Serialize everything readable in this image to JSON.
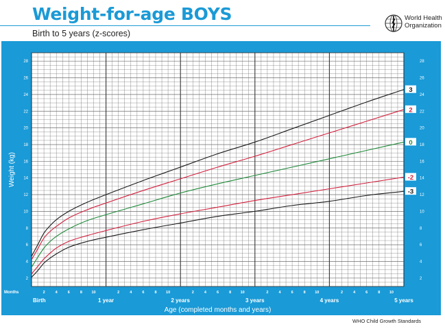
{
  "header": {
    "title": "Weight-for-age BOYS",
    "subtitle": "Birth to 5 years (z-scores)"
  },
  "logo": {
    "text": "World Health\nOrganization",
    "icon": "who-emblem-icon"
  },
  "footer": {
    "text": "WHO Child Growth Standards"
  },
  "colors": {
    "frame": "#1a9ad7",
    "grid": "#6e6e6e",
    "line_3": "#1a1a1a",
    "line_2": "#d21f3c",
    "line_0": "#1f8a3a",
    "line_m2": "#d21f3c",
    "line_m3": "#1a1a1a"
  },
  "chart_data": {
    "type": "line",
    "title": "Weight-for-age BOYS",
    "subtitle": "Birth to 5 years (z-scores)",
    "xlabel": "Age (completed months and years)",
    "ylabel": "Weight (kg)",
    "x_units": "months",
    "xlim": [
      0,
      60
    ],
    "ylim": [
      1,
      29
    ],
    "y_ticks": [
      2,
      4,
      6,
      8,
      10,
      12,
      14,
      16,
      18,
      20,
      22,
      24,
      26,
      28
    ],
    "x_months_label": "Months",
    "x_month_ticks": [
      {
        "x": 2,
        "label": "2"
      },
      {
        "x": 4,
        "label": "4"
      },
      {
        "x": 6,
        "label": "6"
      },
      {
        "x": 8,
        "label": "8"
      },
      {
        "x": 10,
        "label": "10"
      },
      {
        "x": 14,
        "label": "2"
      },
      {
        "x": 16,
        "label": "4"
      },
      {
        "x": 18,
        "label": "6"
      },
      {
        "x": 20,
        "label": "8"
      },
      {
        "x": 22,
        "label": "10"
      },
      {
        "x": 26,
        "label": "2"
      },
      {
        "x": 28,
        "label": "4"
      },
      {
        "x": 30,
        "label": "6"
      },
      {
        "x": 32,
        "label": "8"
      },
      {
        "x": 34,
        "label": "10"
      },
      {
        "x": 38,
        "label": "2"
      },
      {
        "x": 40,
        "label": "4"
      },
      {
        "x": 42,
        "label": "6"
      },
      {
        "x": 44,
        "label": "8"
      },
      {
        "x": 46,
        "label": "10"
      },
      {
        "x": 50,
        "label": "2"
      },
      {
        "x": 52,
        "label": "4"
      },
      {
        "x": 54,
        "label": "6"
      },
      {
        "x": 56,
        "label": "8"
      },
      {
        "x": 58,
        "label": "10"
      }
    ],
    "x_year_ticks": [
      {
        "x": 0,
        "label": "Birth"
      },
      {
        "x": 12,
        "label": "1 year"
      },
      {
        "x": 24,
        "label": "2 years"
      },
      {
        "x": 36,
        "label": "3 years"
      },
      {
        "x": 48,
        "label": "4 years"
      },
      {
        "x": 60,
        "label": "5 years"
      }
    ],
    "grid": true,
    "series": [
      {
        "name": "3",
        "color_key": "line_3",
        "x": [
          0,
          1,
          2,
          3,
          4,
          6,
          9,
          12,
          18,
          24,
          30,
          36,
          42,
          48,
          54,
          60
        ],
        "y": [
          4.6,
          6.0,
          7.4,
          8.3,
          9.0,
          10.0,
          11.1,
          12.0,
          13.7,
          15.3,
          16.9,
          18.3,
          19.9,
          21.5,
          23.1,
          24.6
        ]
      },
      {
        "name": "2",
        "color_key": "line_2",
        "x": [
          0,
          1,
          2,
          3,
          4,
          6,
          9,
          12,
          18,
          24,
          30,
          36,
          42,
          48,
          54,
          60
        ],
        "y": [
          4.2,
          5.5,
          6.8,
          7.6,
          8.2,
          9.2,
          10.2,
          11.0,
          12.5,
          13.9,
          15.3,
          16.6,
          18.0,
          19.4,
          20.8,
          22.2
        ]
      },
      {
        "name": "0",
        "color_key": "line_0",
        "x": [
          0,
          1,
          2,
          3,
          4,
          6,
          9,
          12,
          18,
          24,
          30,
          36,
          42,
          48,
          54,
          60
        ],
        "y": [
          3.3,
          4.5,
          5.6,
          6.4,
          7.0,
          7.9,
          8.9,
          9.6,
          10.9,
          12.2,
          13.3,
          14.3,
          15.3,
          16.3,
          17.3,
          18.3
        ]
      },
      {
        "name": "-2",
        "color_key": "line_m2",
        "x": [
          0,
          1,
          2,
          3,
          4,
          6,
          9,
          12,
          18,
          24,
          30,
          36,
          42,
          48,
          54,
          60
        ],
        "y": [
          2.5,
          3.4,
          4.3,
          5.0,
          5.6,
          6.4,
          7.1,
          7.7,
          8.8,
          9.7,
          10.5,
          11.3,
          12.0,
          12.7,
          13.4,
          14.1
        ]
      },
      {
        "name": "-3",
        "color_key": "line_m3",
        "x": [
          0,
          1,
          2,
          3,
          4,
          6,
          9,
          12,
          18,
          24,
          30,
          36,
          42,
          48,
          54,
          60
        ],
        "y": [
          2.1,
          2.9,
          3.8,
          4.4,
          4.9,
          5.7,
          6.4,
          6.9,
          7.8,
          8.6,
          9.4,
          10.0,
          10.7,
          11.2,
          11.9,
          12.4
        ]
      }
    ]
  }
}
